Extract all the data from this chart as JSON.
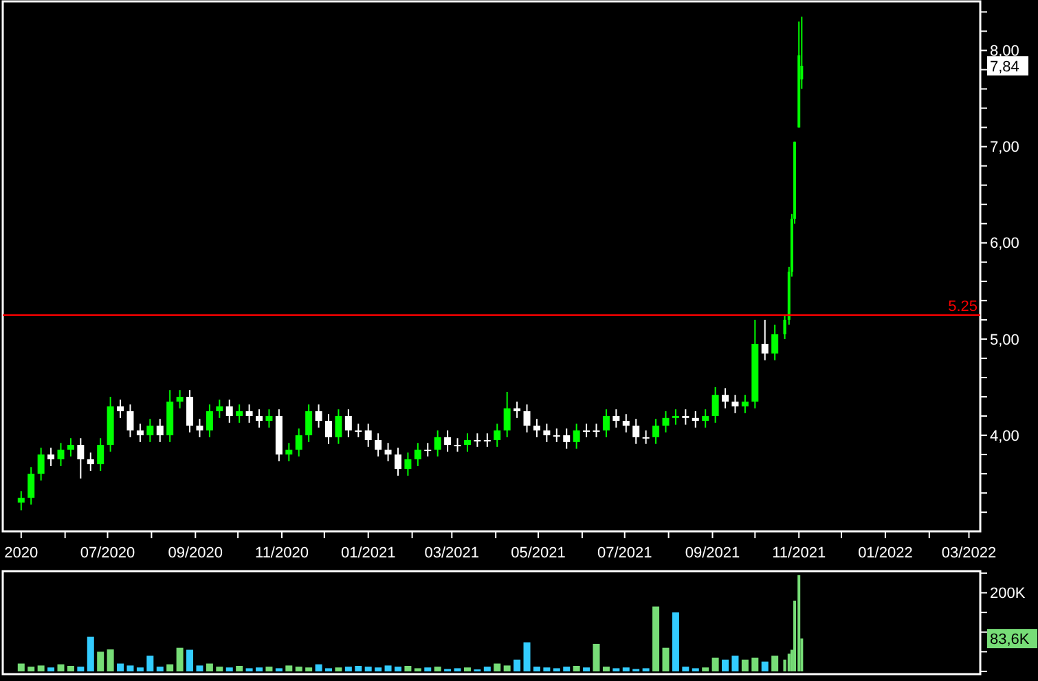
{
  "chart_data": [
    {
      "type": "candlestick",
      "x": [
        "2020-05-01",
        "2020-05-08",
        "2020-05-15",
        "2020-05-22",
        "2020-05-29",
        "2020-06-05",
        "2020-06-12",
        "2020-06-19",
        "2020-06-26",
        "2020-07-03",
        "2020-07-10",
        "2020-07-17",
        "2020-07-24",
        "2020-07-31",
        "2020-08-07",
        "2020-08-14",
        "2020-08-21",
        "2020-08-28",
        "2020-09-04",
        "2020-09-11",
        "2020-09-18",
        "2020-09-25",
        "2020-10-02",
        "2020-10-09",
        "2020-10-16",
        "2020-10-23",
        "2020-10-30",
        "2020-11-06",
        "2020-11-13",
        "2020-11-20",
        "2020-11-27",
        "2020-12-04",
        "2020-12-11",
        "2020-12-18",
        "2020-12-25",
        "2021-01-01",
        "2021-01-08",
        "2021-01-15",
        "2021-01-22",
        "2021-01-29",
        "2021-02-05",
        "2021-02-12",
        "2021-02-19",
        "2021-02-26",
        "2021-03-05",
        "2021-03-12",
        "2021-03-19",
        "2021-03-26",
        "2021-04-02",
        "2021-04-09",
        "2021-04-16",
        "2021-04-23",
        "2021-04-30",
        "2021-05-07",
        "2021-05-14",
        "2021-05-21",
        "2021-05-28",
        "2021-06-04",
        "2021-06-11",
        "2021-06-18",
        "2021-06-25",
        "2021-07-02",
        "2021-07-09",
        "2021-07-16",
        "2021-07-23",
        "2021-07-30",
        "2021-08-06",
        "2021-08-13",
        "2021-08-20",
        "2021-08-27",
        "2021-09-03",
        "2021-09-10",
        "2021-09-17",
        "2021-09-24",
        "2021-10-01",
        "2021-10-08",
        "2021-10-15",
        "2021-10-22",
        "2021-10-25",
        "2021-10-27",
        "2021-10-29",
        "2021-11-01",
        "2021-11-03"
      ],
      "ohlc": [
        [
          3.3,
          3.42,
          3.22,
          3.35
        ],
        [
          3.35,
          3.67,
          3.28,
          3.6
        ],
        [
          3.6,
          3.87,
          3.53,
          3.8
        ],
        [
          3.8,
          3.87,
          3.68,
          3.75
        ],
        [
          3.75,
          3.92,
          3.68,
          3.85
        ],
        [
          3.85,
          3.97,
          3.78,
          3.9
        ],
        [
          3.9,
          3.97,
          3.55,
          3.75
        ],
        [
          3.75,
          3.82,
          3.63,
          3.7
        ],
        [
          3.7,
          3.97,
          3.63,
          3.9
        ],
        [
          3.9,
          4.4,
          3.83,
          4.3
        ],
        [
          4.3,
          4.37,
          4.18,
          4.25
        ],
        [
          4.25,
          4.32,
          3.98,
          4.05
        ],
        [
          4.05,
          4.12,
          3.93,
          4.0
        ],
        [
          4.0,
          4.17,
          3.93,
          4.1
        ],
        [
          4.1,
          4.17,
          3.93,
          4.0
        ],
        [
          4.0,
          4.47,
          3.93,
          4.35
        ],
        [
          4.35,
          4.47,
          4.28,
          4.4
        ],
        [
          4.4,
          4.47,
          4.03,
          4.1
        ],
        [
          4.1,
          4.17,
          3.98,
          4.05
        ],
        [
          4.05,
          4.32,
          3.98,
          4.25
        ],
        [
          4.25,
          4.37,
          4.18,
          4.3
        ],
        [
          4.3,
          4.37,
          4.13,
          4.2
        ],
        [
          4.2,
          4.32,
          4.13,
          4.25
        ],
        [
          4.25,
          4.32,
          4.13,
          4.2
        ],
        [
          4.2,
          4.27,
          4.08,
          4.15
        ],
        [
          4.15,
          4.27,
          4.08,
          4.2
        ],
        [
          4.2,
          4.27,
          3.73,
          3.8
        ],
        [
          3.8,
          3.92,
          3.73,
          3.85
        ],
        [
          3.85,
          4.07,
          3.78,
          4.0
        ],
        [
          4.0,
          4.32,
          3.93,
          4.25
        ],
        [
          4.25,
          4.32,
          4.08,
          4.15
        ],
        [
          4.15,
          4.22,
          3.91,
          3.98
        ],
        [
          3.98,
          4.27,
          3.91,
          4.2
        ],
        [
          4.2,
          4.27,
          3.98,
          4.05
        ],
        [
          4.05,
          4.12,
          3.98,
          4.05
        ],
        [
          4.05,
          4.12,
          3.88,
          3.95
        ],
        [
          3.95,
          4.02,
          3.78,
          3.85
        ],
        [
          3.85,
          3.92,
          3.73,
          3.8
        ],
        [
          3.8,
          3.87,
          3.58,
          3.65
        ],
        [
          3.65,
          3.82,
          3.58,
          3.75
        ],
        [
          3.75,
          3.92,
          3.68,
          3.85
        ],
        [
          3.85,
          3.92,
          3.78,
          3.85
        ],
        [
          3.85,
          4.05,
          3.78,
          3.98
        ],
        [
          3.98,
          4.05,
          3.83,
          3.9
        ],
        [
          3.9,
          3.97,
          3.83,
          3.9
        ],
        [
          3.9,
          4.02,
          3.83,
          3.95
        ],
        [
          3.95,
          4.02,
          3.88,
          3.95
        ],
        [
          3.95,
          4.02,
          3.88,
          3.95
        ],
        [
          3.95,
          4.12,
          3.88,
          4.05
        ],
        [
          4.05,
          4.45,
          3.98,
          4.28
        ],
        [
          4.28,
          4.35,
          4.18,
          4.25
        ],
        [
          4.25,
          4.32,
          4.03,
          4.1
        ],
        [
          4.1,
          4.17,
          3.98,
          4.05
        ],
        [
          4.05,
          4.12,
          3.93,
          4.0
        ],
        [
          4.0,
          4.07,
          3.93,
          4.0
        ],
        [
          4.0,
          4.07,
          3.86,
          3.93
        ],
        [
          3.93,
          4.12,
          3.86,
          4.05
        ],
        [
          4.05,
          4.12,
          3.98,
          4.05
        ],
        [
          4.05,
          4.12,
          3.98,
          4.05
        ],
        [
          4.05,
          4.27,
          3.98,
          4.2
        ],
        [
          4.2,
          4.27,
          4.08,
          4.15
        ],
        [
          4.15,
          4.22,
          4.03,
          4.1
        ],
        [
          4.1,
          4.17,
          3.91,
          3.98
        ],
        [
          3.98,
          4.05,
          3.91,
          3.98
        ],
        [
          3.98,
          4.17,
          3.91,
          4.1
        ],
        [
          4.1,
          4.25,
          4.03,
          4.18
        ],
        [
          4.18,
          4.27,
          4.11,
          4.2
        ],
        [
          4.2,
          4.27,
          4.11,
          4.18
        ],
        [
          4.18,
          4.25,
          4.08,
          4.15
        ],
        [
          4.15,
          4.27,
          4.08,
          4.2
        ],
        [
          4.2,
          4.5,
          4.13,
          4.42
        ],
        [
          4.42,
          4.49,
          4.28,
          4.35
        ],
        [
          4.35,
          4.42,
          4.23,
          4.3
        ],
        [
          4.3,
          4.42,
          4.23,
          4.35
        ],
        [
          4.35,
          5.2,
          4.28,
          4.95
        ],
        [
          4.95,
          5.2,
          4.78,
          4.85
        ],
        [
          4.85,
          5.15,
          4.78,
          5.05
        ],
        [
          5.05,
          5.25,
          5.0,
          5.2
        ],
        [
          5.2,
          5.75,
          5.15,
          5.7
        ],
        [
          5.7,
          6.3,
          5.65,
          6.25
        ],
        [
          6.25,
          7.05,
          6.2,
          7.05
        ],
        [
          7.2,
          8.3,
          7.2,
          7.95
        ],
        [
          7.7,
          8.35,
          7.6,
          7.84
        ]
      ],
      "colors": [
        "#00ff00",
        "#00ff00",
        "#00ff00",
        "#ffffff",
        "#00ff00",
        "#00ff00",
        "#ffffff",
        "#ffffff",
        "#00ff00",
        "#00ff00",
        "#ffffff",
        "#ffffff",
        "#ffffff",
        "#00ff00",
        "#ffffff",
        "#00ff00",
        "#00ff00",
        "#ffffff",
        "#ffffff",
        "#00ff00",
        "#00ff00",
        "#ffffff",
        "#00ff00",
        "#ffffff",
        "#ffffff",
        "#00ff00",
        "#ffffff",
        "#00ff00",
        "#00ff00",
        "#00ff00",
        "#ffffff",
        "#ffffff",
        "#00ff00",
        "#ffffff",
        "#ffffff",
        "#ffffff",
        "#ffffff",
        "#ffffff",
        "#ffffff",
        "#00ff00",
        "#00ff00",
        "#ffffff",
        "#00ff00",
        "#ffffff",
        "#ffffff",
        "#00ff00",
        "#ffffff",
        "#ffffff",
        "#00ff00",
        "#00ff00",
        "#ffffff",
        "#ffffff",
        "#ffffff",
        "#ffffff",
        "#ffffff",
        "#ffffff",
        "#00ff00",
        "#ffffff",
        "#ffffff",
        "#00ff00",
        "#ffffff",
        "#ffffff",
        "#ffffff",
        "#ffffff",
        "#00ff00",
        "#00ff00",
        "#00ff00",
        "#ffffff",
        "#ffffff",
        "#00ff00",
        "#00ff00",
        "#ffffff",
        "#ffffff",
        "#00ff00",
        "#00ff00",
        "#ffffff",
        "#00ff00",
        "#00ff00",
        "#00ff00",
        "#00ff00",
        "#00ff00",
        "#00ff00",
        "#00ff00"
      ],
      "xlim": [
        "2020-04-18",
        "2022-03-09"
      ],
      "xticks": [
        {
          "value": "2020-05-01",
          "label": "2020"
        },
        {
          "value": "2020-06-01",
          "label": null
        },
        {
          "value": "2020-07-01",
          "label": "07/2020"
        },
        {
          "value": "2020-08-01",
          "label": null
        },
        {
          "value": "2020-09-01",
          "label": "09/2020"
        },
        {
          "value": "2020-10-01",
          "label": null
        },
        {
          "value": "2020-11-01",
          "label": "11/2020"
        },
        {
          "value": "2020-12-01",
          "label": null
        },
        {
          "value": "2021-01-01",
          "label": "01/2021"
        },
        {
          "value": "2021-02-01",
          "label": null
        },
        {
          "value": "2021-03-01",
          "label": "03/2021"
        },
        {
          "value": "2021-04-01",
          "label": null
        },
        {
          "value": "2021-05-01",
          "label": "05/2021"
        },
        {
          "value": "2021-06-01",
          "label": null
        },
        {
          "value": "2021-07-01",
          "label": "07/2021"
        },
        {
          "value": "2021-08-01",
          "label": null
        },
        {
          "value": "2021-09-01",
          "label": "09/2021"
        },
        {
          "value": "2021-10-01",
          "label": null
        },
        {
          "value": "2021-11-01",
          "label": "11/2021"
        },
        {
          "value": "2021-12-01",
          "label": null
        },
        {
          "value": "2022-01-01",
          "label": "01/2022"
        },
        {
          "value": "2022-02-01",
          "label": null
        },
        {
          "value": "2022-03-01",
          "label": "03/2022"
        }
      ],
      "ylim": [
        3.03,
        8.51
      ],
      "yticks": [
        {
          "value": 3.2,
          "label": null
        },
        {
          "value": 3.4,
          "label": null
        },
        {
          "value": 3.6,
          "label": null
        },
        {
          "value": 3.8,
          "label": null
        },
        {
          "value": 4,
          "label": "4,00"
        },
        {
          "value": 4.2,
          "label": null
        },
        {
          "value": 4.4,
          "label": null
        },
        {
          "value": 4.6,
          "label": null
        },
        {
          "value": 4.8,
          "label": null
        },
        {
          "value": 5,
          "label": "5,00"
        },
        {
          "value": 5.2,
          "label": null
        },
        {
          "value": 5.4,
          "label": null
        },
        {
          "value": 5.6,
          "label": null
        },
        {
          "value": 5.8,
          "label": null
        },
        {
          "value": 6,
          "label": "6,00"
        },
        {
          "value": 6.2,
          "label": null
        },
        {
          "value": 6.4,
          "label": null
        },
        {
          "value": 6.6,
          "label": null
        },
        {
          "value": 6.8,
          "label": null
        },
        {
          "value": 7,
          "label": "7,00"
        },
        {
          "value": 7.2,
          "label": null
        },
        {
          "value": 7.4,
          "label": null
        },
        {
          "value": 7.6,
          "label": null
        },
        {
          "value": 7.8,
          "label": null
        },
        {
          "value": 8,
          "label": "8,00"
        },
        {
          "value": 8.2,
          "label": null
        },
        {
          "value": 8.4,
          "label": null
        }
      ],
      "ref_lines": [
        {
          "axis": "y",
          "value": 5.25,
          "label": "5.25",
          "color": "#ff0000"
        }
      ],
      "annotations": [
        "7,84"
      ]
    },
    {
      "type": "bar",
      "x": [
        "2020-05-01",
        "2020-05-08",
        "2020-05-15",
        "2020-05-22",
        "2020-05-29",
        "2020-06-05",
        "2020-06-12",
        "2020-06-19",
        "2020-06-26",
        "2020-07-03",
        "2020-07-10",
        "2020-07-17",
        "2020-07-24",
        "2020-07-31",
        "2020-08-07",
        "2020-08-14",
        "2020-08-21",
        "2020-08-28",
        "2020-09-04",
        "2020-09-11",
        "2020-09-18",
        "2020-09-25",
        "2020-10-02",
        "2020-10-09",
        "2020-10-16",
        "2020-10-23",
        "2020-10-30",
        "2020-11-06",
        "2020-11-13",
        "2020-11-20",
        "2020-11-27",
        "2020-12-04",
        "2020-12-11",
        "2020-12-18",
        "2020-12-25",
        "2021-01-01",
        "2021-01-08",
        "2021-01-15",
        "2021-01-22",
        "2021-01-29",
        "2021-02-05",
        "2021-02-12",
        "2021-02-19",
        "2021-02-26",
        "2021-03-05",
        "2021-03-12",
        "2021-03-19",
        "2021-03-26",
        "2021-04-02",
        "2021-04-09",
        "2021-04-16",
        "2021-04-23",
        "2021-04-30",
        "2021-05-07",
        "2021-05-14",
        "2021-05-21",
        "2021-05-28",
        "2021-06-04",
        "2021-06-11",
        "2021-06-18",
        "2021-06-25",
        "2021-07-02",
        "2021-07-09",
        "2021-07-16",
        "2021-07-23",
        "2021-07-30",
        "2021-08-06",
        "2021-08-13",
        "2021-08-20",
        "2021-08-27",
        "2021-09-03",
        "2021-09-10",
        "2021-09-17",
        "2021-09-24",
        "2021-10-01",
        "2021-10-08",
        "2021-10-15",
        "2021-10-22",
        "2021-10-25",
        "2021-10-27",
        "2021-10-29",
        "2021-11-01",
        "2021-11-03"
      ],
      "values": [
        20,
        12,
        15,
        10,
        18,
        14,
        12,
        88,
        50,
        56,
        20,
        15,
        10,
        40,
        12,
        18,
        60,
        55,
        15,
        20,
        12,
        10,
        14,
        8,
        10,
        12,
        8,
        15,
        12,
        10,
        18,
        8,
        10,
        12,
        14,
        12,
        10,
        15,
        12,
        14,
        8,
        10,
        12,
        6,
        8,
        10,
        5,
        12,
        20,
        15,
        30,
        74,
        12,
        10,
        8,
        12,
        14,
        10,
        70,
        12,
        8,
        10,
        6,
        8,
        165,
        60,
        150,
        12,
        8,
        10,
        35,
        30,
        40,
        30,
        35,
        25,
        40,
        30,
        45,
        55,
        180,
        245,
        83.6
      ],
      "colors": [
        "#77dd77",
        "#77dd77",
        "#77dd77",
        "#33ccff",
        "#77dd77",
        "#77dd77",
        "#33ccff",
        "#33ccff",
        "#77dd77",
        "#77dd77",
        "#33ccff",
        "#33ccff",
        "#33ccff",
        "#33ccff",
        "#33ccff",
        "#77dd77",
        "#77dd77",
        "#33ccff",
        "#33ccff",
        "#77dd77",
        "#77dd77",
        "#33ccff",
        "#77dd77",
        "#33ccff",
        "#33ccff",
        "#77dd77",
        "#33ccff",
        "#77dd77",
        "#77dd77",
        "#77dd77",
        "#33ccff",
        "#33ccff",
        "#77dd77",
        "#33ccff",
        "#33ccff",
        "#33ccff",
        "#33ccff",
        "#33ccff",
        "#33ccff",
        "#77dd77",
        "#77dd77",
        "#33ccff",
        "#77dd77",
        "#33ccff",
        "#33ccff",
        "#77dd77",
        "#33ccff",
        "#33ccff",
        "#77dd77",
        "#77dd77",
        "#33ccff",
        "#33ccff",
        "#33ccff",
        "#33ccff",
        "#33ccff",
        "#33ccff",
        "#77dd77",
        "#33ccff",
        "#77dd77",
        "#77dd77",
        "#33ccff",
        "#33ccff",
        "#33ccff",
        "#33ccff",
        "#77dd77",
        "#77dd77",
        "#33ccff",
        "#33ccff",
        "#33ccff",
        "#77dd77",
        "#77dd77",
        "#33ccff",
        "#33ccff",
        "#77dd77",
        "#77dd77",
        "#33ccff",
        "#77dd77",
        "#77dd77",
        "#77dd77",
        "#77dd77",
        "#77dd77",
        "#77dd77",
        "#77dd77"
      ],
      "xlim": [
        "2020-04-18",
        "2022-03-09"
      ],
      "ylim": [
        0,
        255
      ],
      "yticks": [
        {
          "value": 0,
          "label": null
        },
        {
          "value": 50,
          "label": null
        },
        {
          "value": 100,
          "label": null
        },
        {
          "value": 150,
          "label": null
        },
        {
          "value": 200,
          "label": "200K"
        },
        {
          "value": 250,
          "label": null
        }
      ],
      "tick_labels": "y",
      "annotations": [
        "83,6K"
      ]
    }
  ]
}
